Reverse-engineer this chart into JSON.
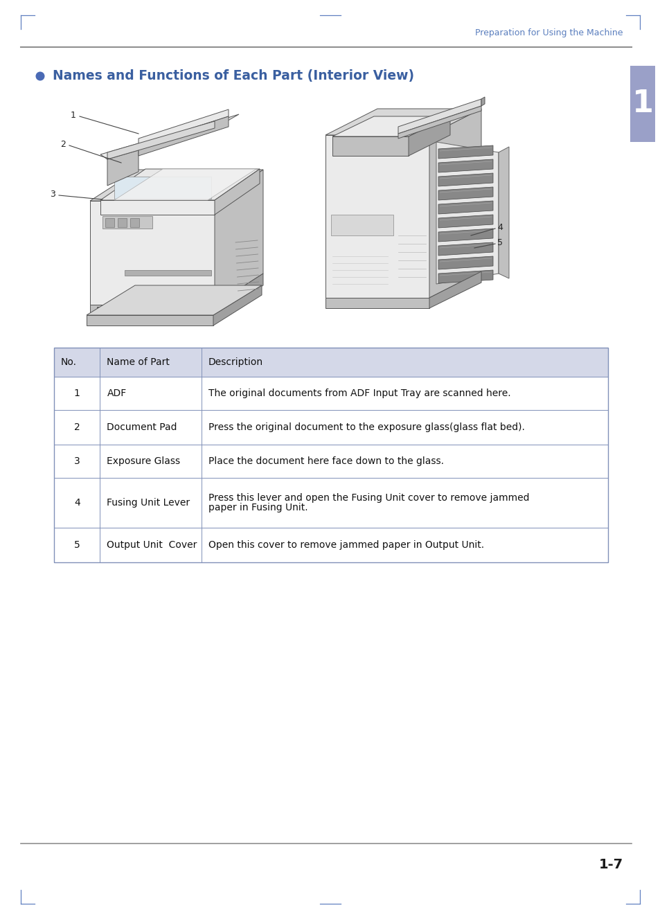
{
  "page_bg": "#ffffff",
  "header_text": "Preparation for Using the Machine",
  "header_color": "#5b7fbe",
  "header_line_color": "#909090",
  "section_bullet_color": "#4a6ab5",
  "section_title": "Names and Functions of Each Part (Interior View)",
  "section_title_color": "#3a5fa0",
  "tab_color": "#9aa0c8",
  "tab_text": "1",
  "tab_text_color": "#ffffff",
  "footer_line_color": "#909090",
  "footer_page": "1-7",
  "footer_page_color": "#1a1a1a",
  "table_header_bg": "#d4d8e8",
  "table_border_color": "#8090b8",
  "table_row_bg": "#ffffff",
  "table_cols": [
    "No.",
    "Name of Part",
    "Description"
  ],
  "table_rows": [
    [
      "1",
      "ADF",
      "The original documents from ADF Input Tray are scanned here."
    ],
    [
      "2",
      "Document Pad",
      "Press the original document to the exposure glass(glass flat bed)."
    ],
    [
      "3",
      "Exposure Glass",
      "Place the document here face down to the glass."
    ],
    [
      "4",
      "Fusing Unit Lever",
      "Press this lever and open the Fusing Unit cover to remove jammed\npaper in Fusing Unit."
    ],
    [
      "5",
      "Output Unit  Cover",
      "Open this cover to remove jammed paper in Output Unit."
    ]
  ],
  "corner_marks_color": "#6080c0",
  "printer_body": "#d8d8d8",
  "printer_dark": "#a0a0a0",
  "printer_light": "#ebebeb",
  "printer_edge": "#555555",
  "printer_mid": "#c0c0c0"
}
